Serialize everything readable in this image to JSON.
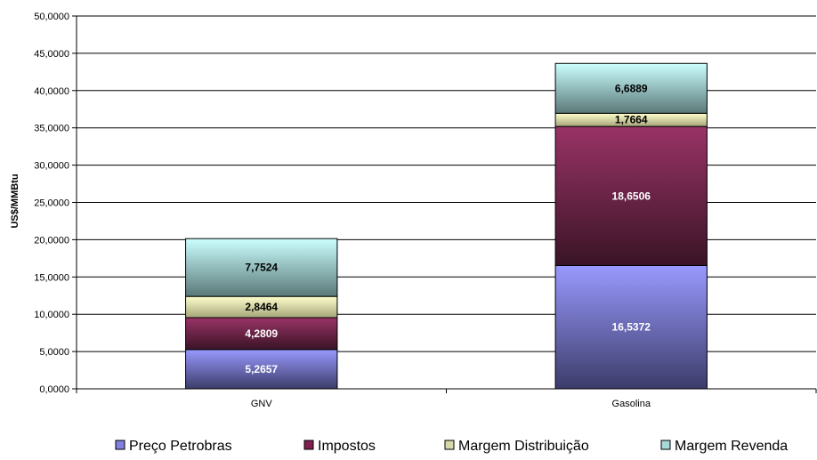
{
  "chart_data": {
    "type": "bar",
    "stacked": true,
    "categories": [
      "GNV",
      "Gasolina"
    ],
    "ylabel": "US$/MMBtu",
    "xlabel": "",
    "ylim": [
      0,
      50
    ],
    "y_ticks": [
      "0,0000",
      "5,0000",
      "10,0000",
      "15,0000",
      "20,0000",
      "25,0000",
      "30,0000",
      "35,0000",
      "40,0000",
      "45,0000",
      "50,0000"
    ],
    "grid": true,
    "legend_position": "bottom",
    "series": [
      {
        "name": "Preço Petrobras",
        "values": [
          5.2657,
          16.5372
        ],
        "labels": [
          "5,2657",
          "16,5372"
        ],
        "color_top": "#9999ff",
        "color_bottom": "#3c3c6a",
        "label_color": "#ffffff",
        "legend_color": "#8080e0"
      },
      {
        "name": "Impostos",
        "values": [
          4.2809,
          18.6506
        ],
        "labels": [
          "4,2809",
          "18,6506"
        ],
        "color_top": "#993366",
        "color_bottom": "#3a1426",
        "label_color": "#ffffff",
        "legend_color": "#802050"
      },
      {
        "name": "Margem Distribuição",
        "values": [
          2.8464,
          1.7664
        ],
        "labels": [
          "2,8464",
          "1,7664"
        ],
        "color_top": "#ffffcc",
        "color_bottom": "#a5a57a",
        "label_color": "#000000",
        "legend_color": "#d8d8a8"
      },
      {
        "name": "Margem Revenda",
        "values": [
          7.7524,
          6.6889
        ],
        "labels": [
          "7,7524",
          "6,6889"
        ],
        "color_top": "#ccffff",
        "color_bottom": "#5a7878",
        "label_color": "#000000",
        "legend_color": "#a8d8d8"
      }
    ]
  }
}
